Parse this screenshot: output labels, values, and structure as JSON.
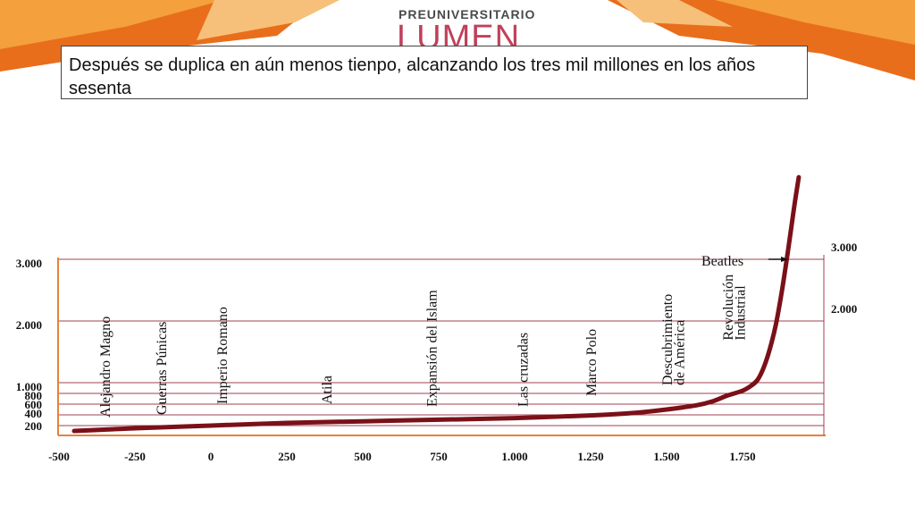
{
  "logo": {
    "top": "PREUNIVERSITARIO",
    "main": "LUMEN"
  },
  "caption": "Después se duplica en aún menos tienpo, alcanzando los tres mil millones en los años sesenta",
  "colors": {
    "curve": "#7a1018",
    "axis": "#e8823a",
    "grid": "#a04050",
    "banner_orange": "#f08a2a",
    "banner_light": "#f6b25a",
    "brand": "#c0405a"
  },
  "chart_data": {
    "type": "line",
    "xlim": [
      -500,
      1975
    ],
    "ylim": [
      0,
      4500
    ],
    "x_ticks": [
      {
        "value": -500,
        "label": "-500"
      },
      {
        "value": -250,
        "label": "-250"
      },
      {
        "value": 0,
        "label": "0"
      },
      {
        "value": 250,
        "label": "250"
      },
      {
        "value": 500,
        "label": "500"
      },
      {
        "value": 750,
        "label": "750"
      },
      {
        "value": 1000,
        "label": "1.000"
      },
      {
        "value": 1250,
        "label": "1.250"
      },
      {
        "value": 1500,
        "label": "1.500"
      },
      {
        "value": 1750,
        "label": "1.750"
      }
    ],
    "y_ticks_left": [
      {
        "value": 200,
        "label": "200"
      },
      {
        "value": 400,
        "label": "400"
      },
      {
        "value": 600,
        "label": "600"
      },
      {
        "value": 800,
        "label": "800"
      },
      {
        "value": 1000,
        "label": "1.000"
      },
      {
        "value": 2000,
        "label": "2.000"
      },
      {
        "value": 3000,
        "label": "3.000"
      }
    ],
    "y_ticks_right": [
      {
        "value": 2000,
        "label": "2.000"
      },
      {
        "value": 3000,
        "label": "3.000"
      }
    ],
    "series": [
      {
        "points": [
          {
            "x": -450,
            "y": 100
          },
          {
            "x": -250,
            "y": 150
          },
          {
            "x": 0,
            "y": 200
          },
          {
            "x": 250,
            "y": 250
          },
          {
            "x": 500,
            "y": 280
          },
          {
            "x": 750,
            "y": 310
          },
          {
            "x": 1000,
            "y": 340
          },
          {
            "x": 1250,
            "y": 390
          },
          {
            "x": 1400,
            "y": 440
          },
          {
            "x": 1500,
            "y": 500
          },
          {
            "x": 1600,
            "y": 580
          },
          {
            "x": 1650,
            "y": 650
          },
          {
            "x": 1700,
            "y": 760
          },
          {
            "x": 1750,
            "y": 850
          },
          {
            "x": 1780,
            "y": 950
          },
          {
            "x": 1800,
            "y": 1050
          },
          {
            "x": 1820,
            "y": 1250
          },
          {
            "x": 1840,
            "y": 1550
          },
          {
            "x": 1860,
            "y": 1950
          },
          {
            "x": 1880,
            "y": 2500
          },
          {
            "x": 1900,
            "y": 3150
          },
          {
            "x": 1920,
            "y": 3850
          },
          {
            "x": 1935,
            "y": 4330
          }
        ]
      }
    ],
    "annotations": [
      {
        "text": "Alejandro Magno",
        "x": -350,
        "y_base": 250
      },
      {
        "text": "Guerras Púnicas",
        "x": -165,
        "y_base": 300
      },
      {
        "text": "Imperio Romano",
        "x": 35,
        "y_base": 500
      },
      {
        "text": "Atila",
        "x": 380,
        "y_base": 500
      },
      {
        "text": "Expansión del Islam",
        "x": 725,
        "y_base": 450
      },
      {
        "text": "Las cruzadas",
        "x": 1025,
        "y_base": 450
      },
      {
        "text": "Marco Polo",
        "x": 1250,
        "y_base": 650
      },
      {
        "text": "Descubrimiento",
        "x": 1500,
        "y_base": 850
      },
      {
        "text": "de América",
        "x": 1540,
        "y_base": 850
      },
      {
        "text": "Revolución",
        "x": 1700,
        "y_base": 1600
      },
      {
        "text": "Industrial",
        "x": 1740,
        "y_base": 1600
      }
    ],
    "beatles": {
      "text": "Beatles",
      "x": 1600,
      "y": 3000
    }
  }
}
